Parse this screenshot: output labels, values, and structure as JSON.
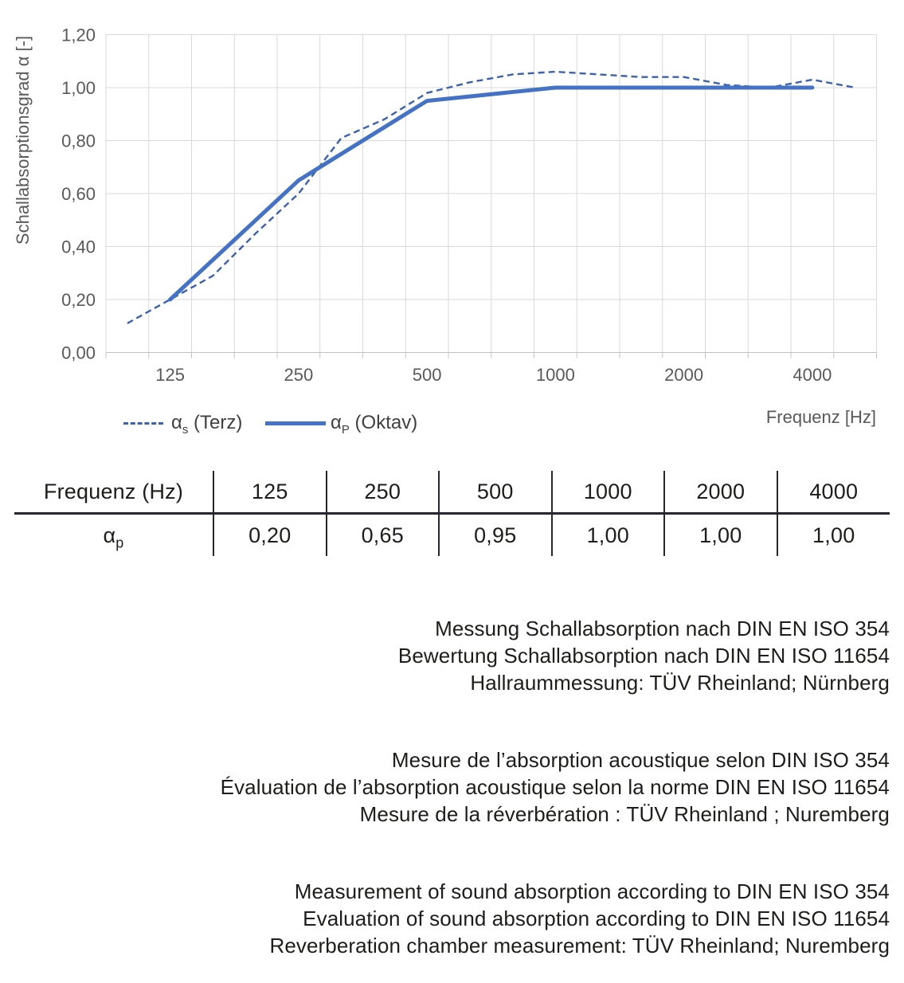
{
  "chart_data": {
    "type": "line",
    "title": "",
    "ylabel": "Schallabsorptionsgrad α [-]",
    "xlabel": "Frequenz [Hz]",
    "ylim": [
      0,
      1.2
    ],
    "ytick_labels": [
      "0,00",
      "0,20",
      "0,40",
      "0,60",
      "0,80",
      "1,00",
      "1,20"
    ],
    "x_categories": [
      100,
      125,
      160,
      200,
      250,
      315,
      400,
      500,
      630,
      800,
      1000,
      1250,
      1600,
      2000,
      2500,
      3150,
      4000,
      5000
    ],
    "x_axis_labels": [
      "125",
      "250",
      "500",
      "1000",
      "2000",
      "4000"
    ],
    "grid": true,
    "legend_position": "bottom-left",
    "grid_color": "#d9d9d9",
    "axis_color": "#c3c3c3",
    "label_color": "#595959",
    "series": [
      {
        "name": "αs (Terz)",
        "symbol": "α",
        "sub": "s",
        "rest": " (Terz)",
        "style": "dashed",
        "color": "#3c62ae",
        "x": [
          100,
          125,
          160,
          200,
          250,
          315,
          400,
          500,
          630,
          800,
          1000,
          1250,
          1600,
          2000,
          2500,
          3150,
          4000,
          5000
        ],
        "values": [
          0.11,
          0.2,
          0.29,
          0.45,
          0.6,
          0.81,
          0.88,
          0.98,
          1.02,
          1.05,
          1.06,
          1.05,
          1.04,
          1.04,
          1.01,
          1.0,
          1.03,
          1.0
        ]
      },
      {
        "name": "αP (Oktav)",
        "symbol": "α",
        "sub": "P",
        "rest": " (Oktav)",
        "style": "solid",
        "color": "#4472c4",
        "x": [
          125,
          250,
          500,
          1000,
          2000,
          4000
        ],
        "values": [
          0.2,
          0.65,
          0.95,
          1.0,
          1.0,
          1.0
        ]
      }
    ]
  },
  "table": {
    "header": [
      "Frequenz (Hz)",
      "125",
      "250",
      "500",
      "1000",
      "2000",
      "4000"
    ],
    "row_label": {
      "symbol": "α",
      "sub": "p"
    },
    "values": [
      "0,20",
      "0,65",
      "0,95",
      "1,00",
      "1,00",
      "1,00"
    ]
  },
  "notes": {
    "german": [
      "Messung Schallabsorption nach DIN EN ISO 354",
      "Bewertung Schallabsorption nach DIN EN ISO 11654",
      "Hallraummessung: TÜV Rheinland; Nürnberg"
    ],
    "french": [
      "Mesure de l’absorption acoustique selon DIN ISO 354",
      "Évaluation de l’absorption acoustique selon la norme DIN EN ISO 11654",
      "Mesure de la réverbération : TÜV Rheinland ; Nuremberg"
    ],
    "english": [
      "Measurement of sound absorption according to DIN EN ISO 354",
      "Evaluation of sound absorption according to DIN EN ISO 11654",
      "Reverberation chamber measurement: TÜV Rheinland; Nuremberg"
    ]
  }
}
